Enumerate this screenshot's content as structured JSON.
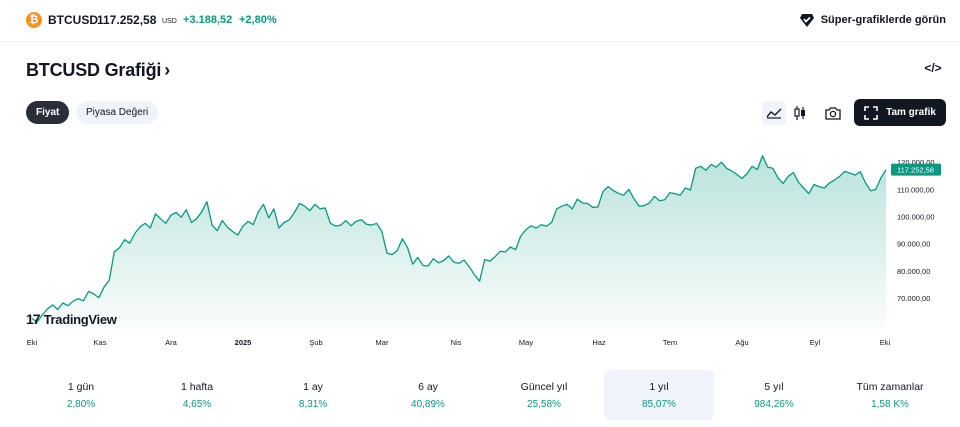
{
  "ticker": {
    "coin_glyph": "₿",
    "symbol": "BTCUSD",
    "price": "117.252,58",
    "currency": "USD",
    "change": "+3.188,52",
    "change_pct": "+2,80%",
    "super_charts_label": "Süper-grafiklerde görün"
  },
  "header": {
    "title": "BTCUSD Grafiği",
    "title_chevron": "›",
    "embed_label": "</>"
  },
  "tabs": [
    {
      "label": "Fiyat",
      "active": true
    },
    {
      "label": "Piyasa Değeri",
      "active": false
    }
  ],
  "toolbar": {
    "full_chart_label": "Tam grafik",
    "icons": [
      "area-chart-icon",
      "candles-icon",
      "camera-icon",
      "fullscreen-icon"
    ]
  },
  "chart_data": {
    "type": "area",
    "x_labels": [
      "Eki",
      "Kas",
      "Ara",
      "2025",
      "Şub",
      "Mar",
      "Nis",
      "May",
      "Haz",
      "Tem",
      "Ağu",
      "Eyl",
      "Eki"
    ],
    "x_label_bold": "2025",
    "y_ticks": [
      "120.000,00",
      "110.000,00",
      "100.000,00",
      "90.000,00",
      "80.000,00",
      "70.000,00"
    ],
    "y_tick_values": [
      120000,
      110000,
      100000,
      90000,
      80000,
      70000
    ],
    "ylim": [
      59000,
      130000
    ],
    "price_label": "117.252,58",
    "last_value": 117252.58,
    "line_color": "#089981",
    "series_values": [
      62500,
      61200,
      63800,
      66000,
      67500,
      65800,
      68200,
      67200,
      68900,
      69800,
      69000,
      72500,
      71500,
      70200,
      74000,
      76500,
      87000,
      88500,
      91500,
      90200,
      93800,
      96200,
      97500,
      95800,
      101000,
      99200,
      97500,
      100500,
      101500,
      99800,
      102500,
      97800,
      99200,
      101800,
      105500,
      96800,
      94800,
      98500,
      96000,
      94500,
      93200,
      96500,
      98200,
      97000,
      101800,
      104500,
      99500,
      102800,
      95800,
      97800,
      98800,
      101500,
      104800,
      103800,
      102200,
      104500,
      102800,
      103200,
      97500,
      96500,
      96800,
      98500,
      96600,
      98200,
      98800,
      97200,
      96800,
      97500,
      94500,
      86500,
      86000,
      87500,
      91800,
      88500,
      82500,
      85000,
      82000,
      81800,
      84500,
      83000,
      83800,
      85500,
      83200,
      82800,
      84000,
      81500,
      78600,
      76200,
      84200,
      83600,
      85200,
      87200,
      87000,
      88800,
      87800,
      92800,
      95200,
      96600,
      95800,
      97000,
      96500,
      97800,
      102800,
      103800,
      104500,
      102800,
      106400,
      105000,
      104800,
      103400,
      103500,
      109200,
      111000,
      109600,
      108500,
      107800,
      110000,
      106600,
      103800,
      104000,
      105000,
      107400,
      105800,
      106200,
      108800,
      108400,
      107800,
      110500,
      109800,
      117800,
      118500,
      117000,
      119200,
      118200,
      120000,
      117800,
      116800,
      115500,
      114000,
      115800,
      118500,
      117300,
      122400,
      118200,
      117800,
      114200,
      112200,
      114800,
      116200,
      112600,
      110500,
      108400,
      111800,
      111000,
      110500,
      112300,
      113500,
      114800,
      116600,
      116000,
      115300,
      116500,
      112500,
      109500,
      110000,
      114200,
      117252.58
    ]
  },
  "watermark": {
    "glyph": "17",
    "label": "TradingView"
  },
  "periods": [
    {
      "label": "1 gün",
      "value": "2,80%",
      "selected": false
    },
    {
      "label": "1 hafta",
      "value": "4,65%",
      "selected": false
    },
    {
      "label": "1 ay",
      "value": "8,31%",
      "selected": false
    },
    {
      "label": "6 ay",
      "value": "40,89%",
      "selected": false
    },
    {
      "label": "Güncel yıl",
      "value": "25,58%",
      "selected": false
    },
    {
      "label": "1 yıl",
      "value": "85,07%",
      "selected": true
    },
    {
      "label": "5 yıl",
      "value": "984,26%",
      "selected": false
    },
    {
      "label": "Tüm zamanlar",
      "value": "1,58 K%",
      "selected": false
    }
  ],
  "colors": {
    "accent_green": "#089981",
    "dark": "#131722",
    "btc_orange": "#f7931a"
  }
}
